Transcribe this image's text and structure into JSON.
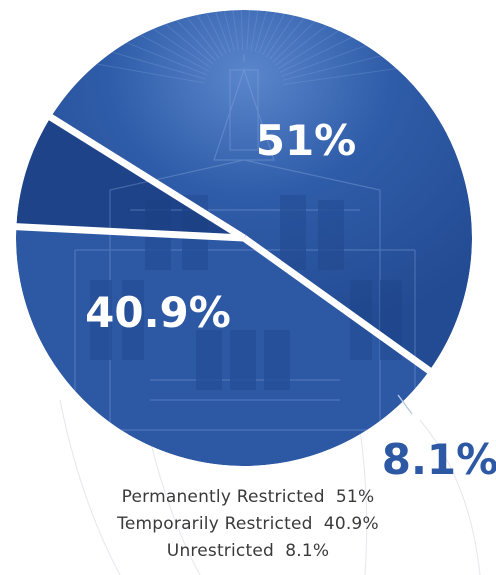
{
  "chart_data": {
    "type": "pie",
    "title": "",
    "slices": [
      {
        "label": "Permanently Restricted",
        "value": 51,
        "display": "51%"
      },
      {
        "label": "Temporarily Restricted",
        "value": 40.9,
        "display": "40.9%"
      },
      {
        "label": "Unrestricted",
        "value": 8.1,
        "display": "8.1%"
      }
    ],
    "legend_lines": [
      "Permanently Restricted  51%",
      "Temporarily Restricted  40.9%",
      "Unrestricted  8.1%"
    ],
    "colors": {
      "slice_fill": "#2c58a4",
      "slice_light": "#4a76bf",
      "slice_dark": "#1e4388",
      "divider": "#ffffff",
      "small_label": "#2c58a4",
      "big_label": "#ffffff",
      "legend_text": "#3a3a3a"
    }
  }
}
